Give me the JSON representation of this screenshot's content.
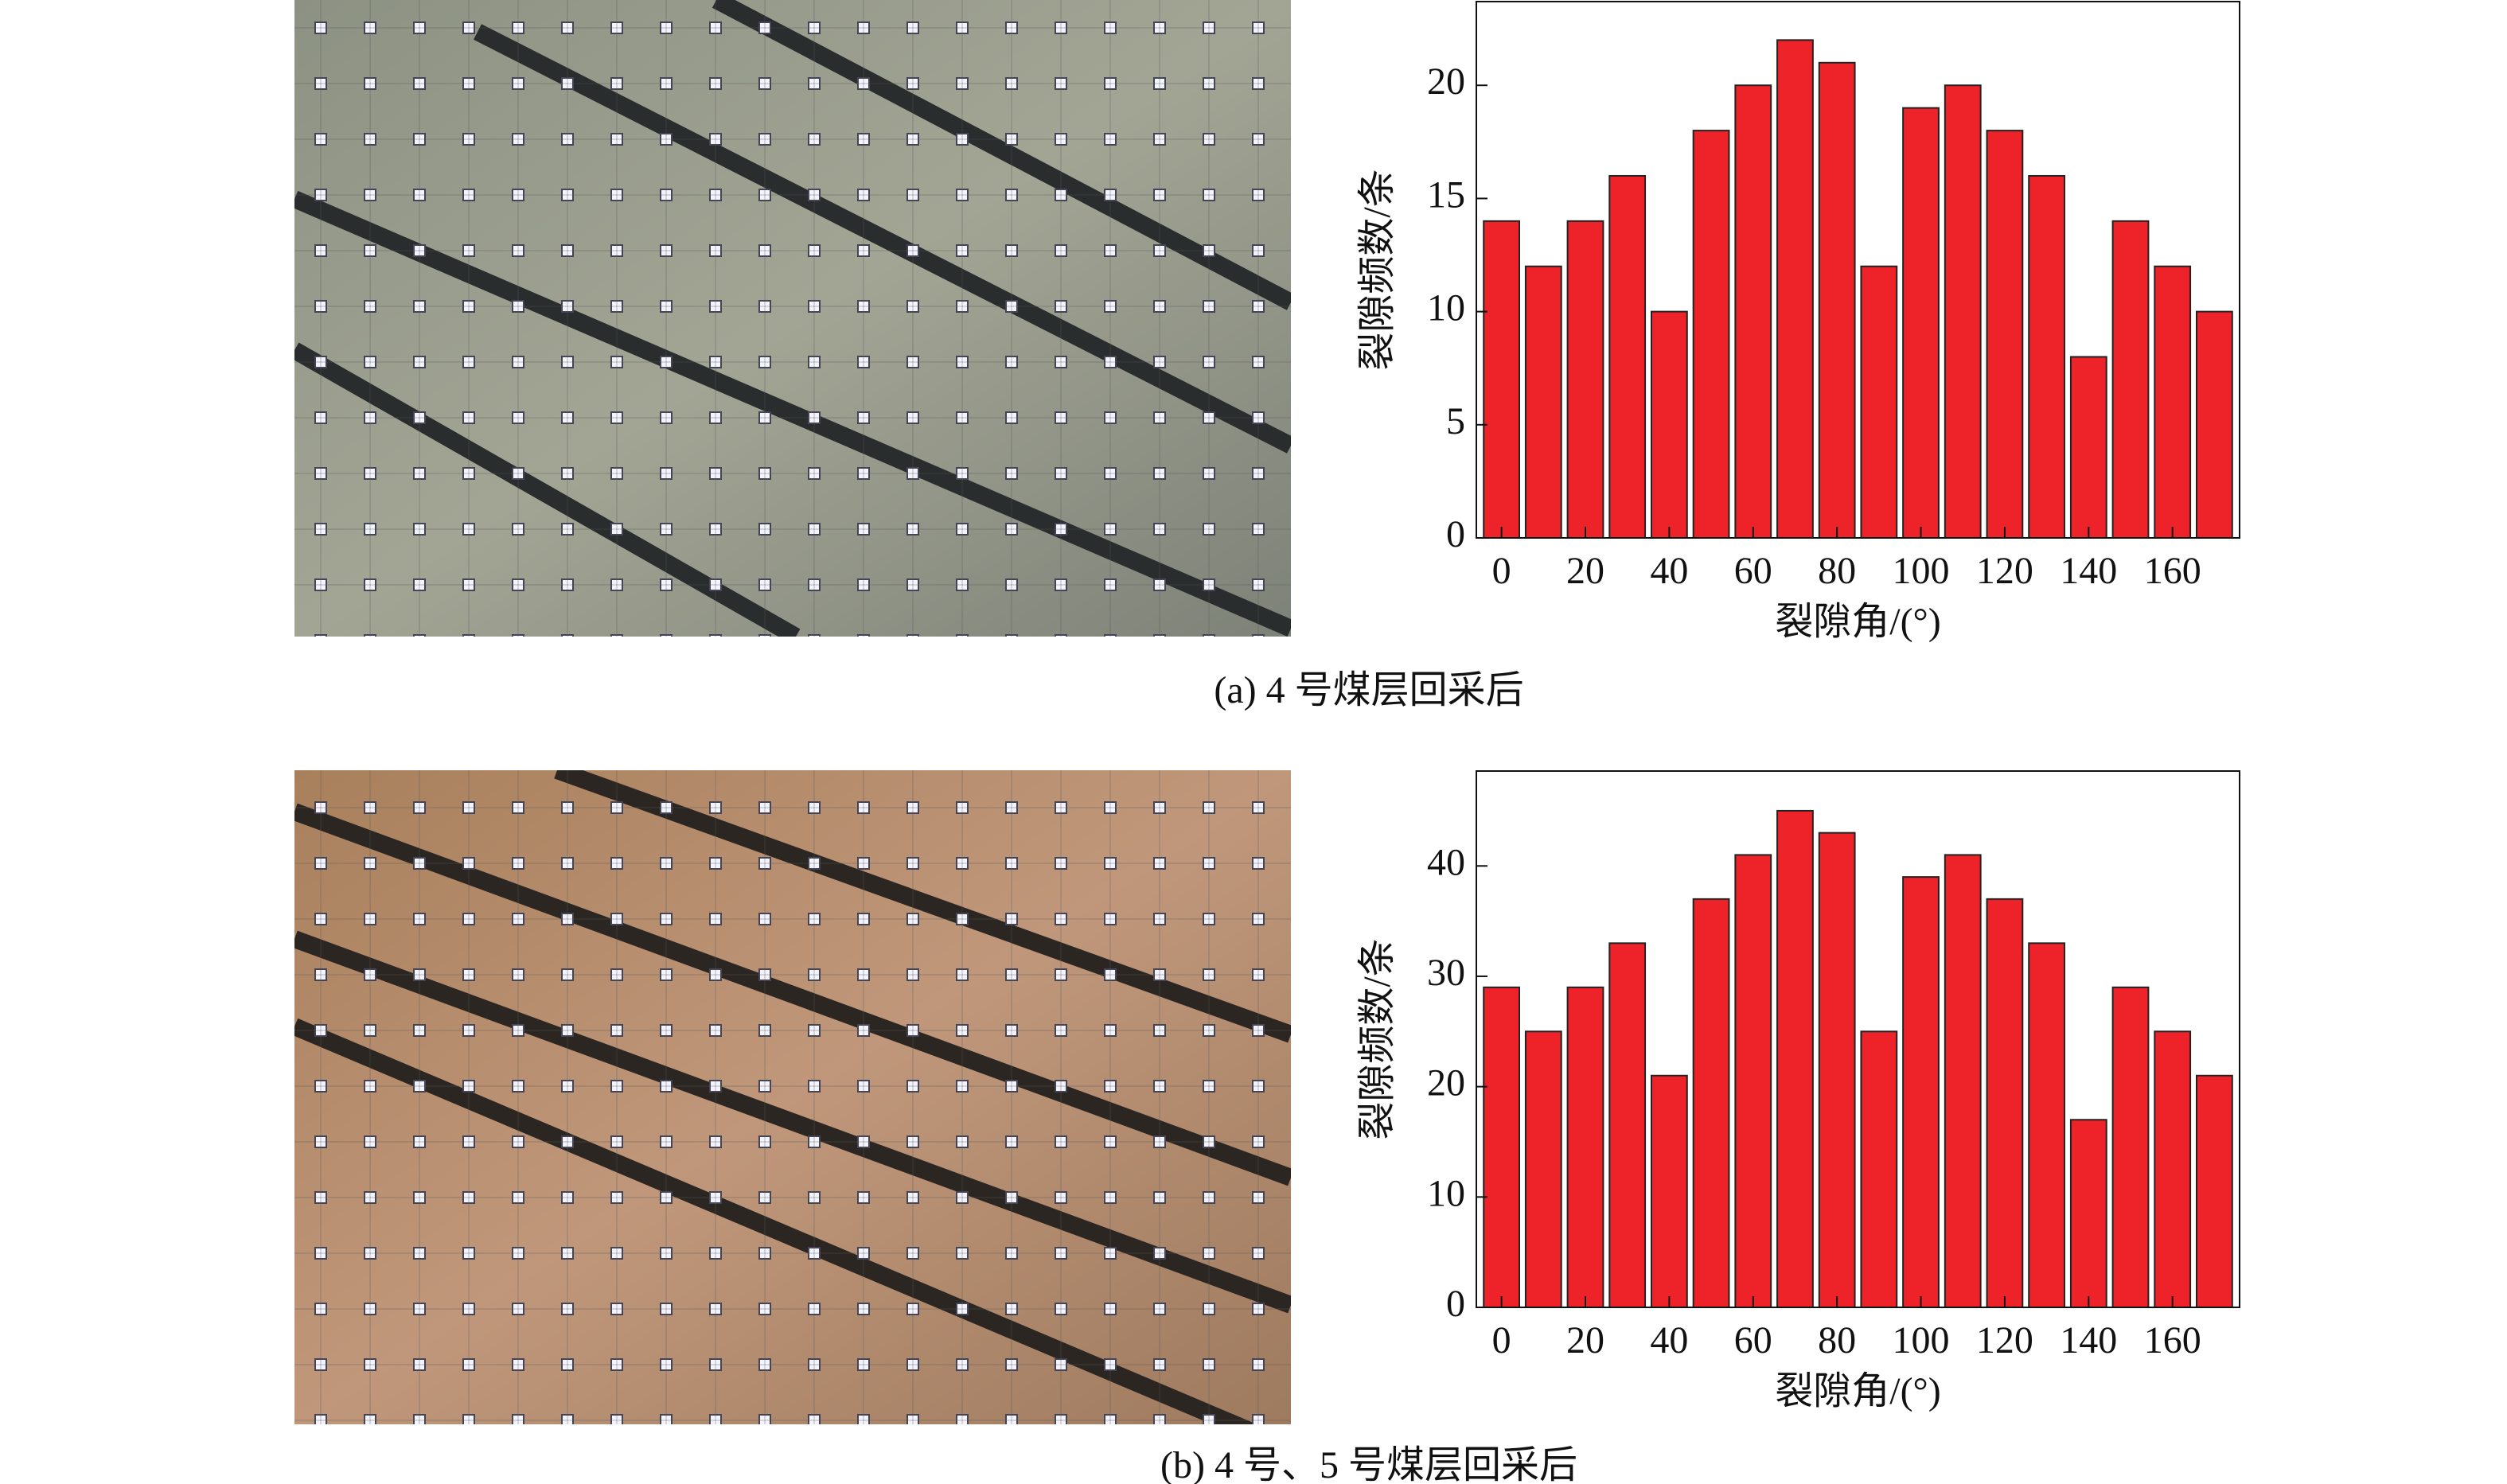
{
  "chart_data": [
    {
      "type": "bar",
      "caption": "(a) 4 号煤层回采后",
      "y_label": "裂隙频数/条",
      "x_label": "裂隙角/(°)",
      "x": [
        0,
        10,
        20,
        30,
        40,
        50,
        60,
        70,
        80,
        90,
        100,
        110,
        120,
        130,
        140,
        150,
        160,
        170
      ],
      "values": [
        14,
        12,
        14,
        16,
        10,
        18,
        20,
        22,
        21,
        12,
        19,
        20,
        18,
        16,
        8,
        14,
        12,
        10
      ],
      "color": "#ee2229",
      "xlim": [
        -6,
        176
      ],
      "ylim": [
        0,
        23.7
      ],
      "xticks": [
        0,
        20,
        40,
        60,
        80,
        100,
        120,
        140,
        160
      ],
      "yticks": [
        0,
        5,
        10,
        15,
        20
      ]
    },
    {
      "type": "bar",
      "caption": "(b) 4 号、5 号煤层回采后",
      "y_label": "裂隙频数/条",
      "x_label": "裂隙角/(°)",
      "x": [
        0,
        10,
        20,
        30,
        40,
        50,
        60,
        70,
        80,
        90,
        100,
        110,
        120,
        130,
        140,
        150,
        160,
        170
      ],
      "values": [
        29,
        25,
        29,
        33,
        21,
        37,
        41,
        45,
        43,
        25,
        39,
        41,
        37,
        33,
        17,
        29,
        25,
        21
      ],
      "color": "#ee2229",
      "xlim": [
        -6,
        176
      ],
      "ylim": [
        0,
        48.6
      ],
      "xticks": [
        0,
        20,
        40,
        60,
        80,
        100,
        120,
        140,
        160
      ],
      "yticks": [
        0,
        10,
        20,
        30,
        40
      ]
    }
  ]
}
